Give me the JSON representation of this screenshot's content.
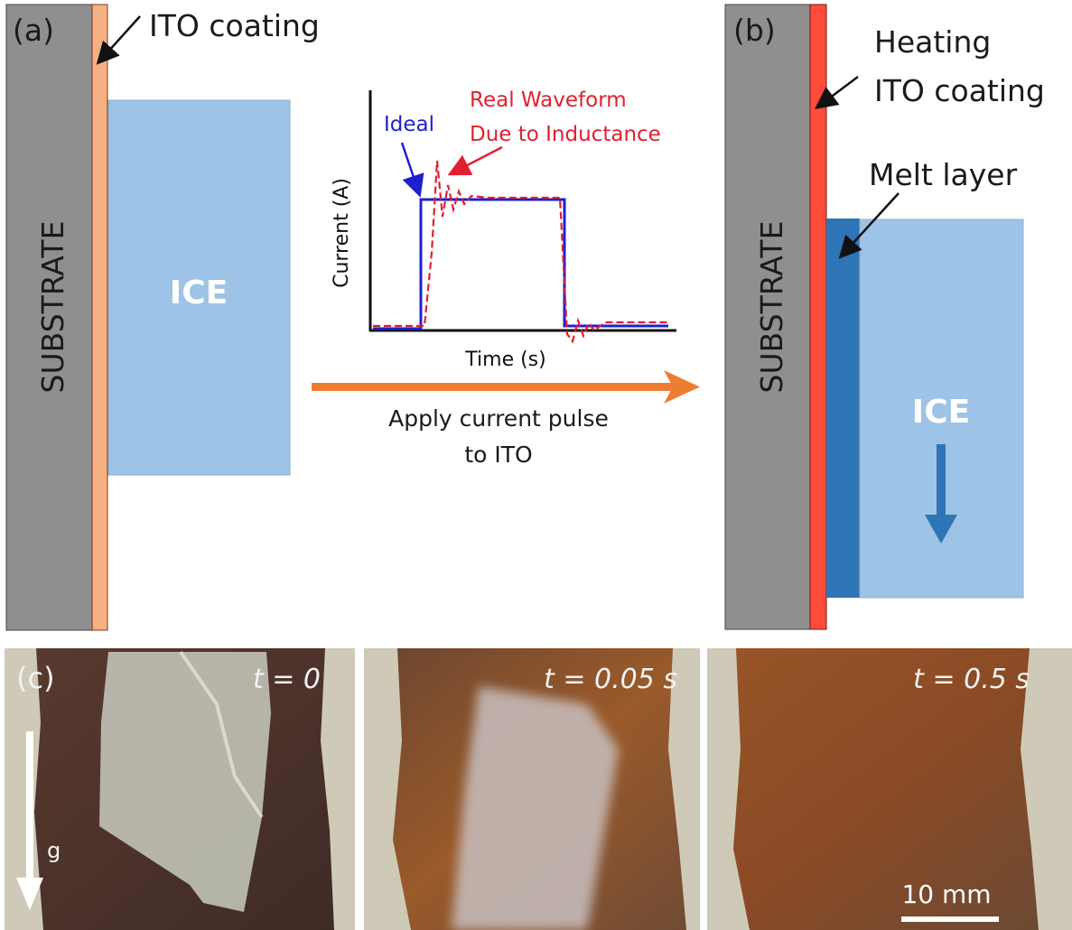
{
  "panel_a": {
    "label": "(a)",
    "coating_label": "ITO coating",
    "substrate_label": "SUBSTRATE",
    "ice_label": "ICE"
  },
  "inset": {
    "ideal_label": "Ideal",
    "real_label": [
      "Real Waveform",
      "Due to Inductance"
    ],
    "y_axis_label": "Current (A)",
    "x_axis_label": "Time (s)"
  },
  "arrow": {
    "label": [
      "Apply current pulse",
      "to ITO"
    ]
  },
  "panel_b": {
    "label": "(b)",
    "coating_label": [
      "Heating",
      "ITO coating"
    ],
    "melt_label": "Melt layer",
    "substrate_label": "SUBSTRATE",
    "ice_label": "ICE"
  },
  "panel_c": {
    "label": "(c)",
    "photos": [
      {
        "time": "t = 0"
      },
      {
        "time": "t = 0.05 s"
      },
      {
        "time": "t = 0.5 s"
      }
    ],
    "gravity_label": "g",
    "scale_label": "10 mm"
  }
}
